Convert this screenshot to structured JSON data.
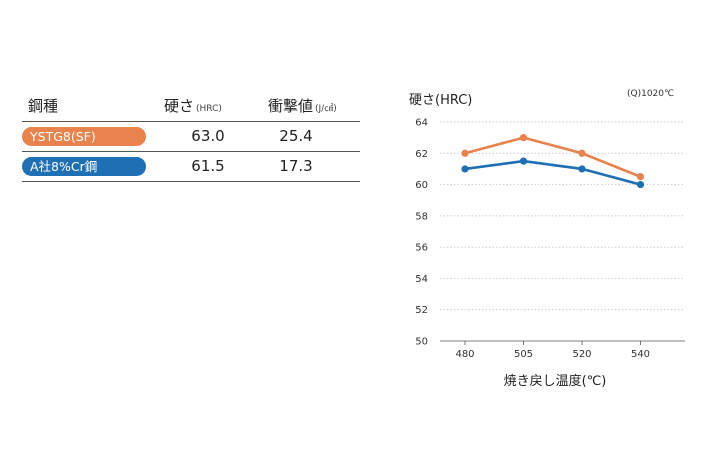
{
  "table": {
    "headers": {
      "grade": "鋼種",
      "hardness": "硬さ",
      "hardness_unit": "(HRC)",
      "impact": "衝撃値",
      "impact_unit": "(J/㎠)"
    },
    "rows": [
      {
        "name": "YSTG8(SF)",
        "hardness": "63.0",
        "impact": "25.4",
        "color": "#e8834d"
      },
      {
        "name": "A社8%Cr鋼",
        "hardness": "61.5",
        "impact": "17.3",
        "color": "#1f6fb4"
      }
    ]
  },
  "chart_data": {
    "type": "line",
    "ylabel": "硬さ(HRC)",
    "xlabel": "焼き戻し温度(℃)",
    "annotation": "(Q)1020℃",
    "categories": [
      "480",
      "505",
      "520",
      "540"
    ],
    "ylim": [
      50,
      64
    ],
    "yticks": [
      50,
      52,
      54,
      56,
      58,
      60,
      62,
      64
    ],
    "grid": true,
    "series": [
      {
        "values": [
          62,
          63,
          62,
          60.5
        ],
        "color": "#e8834d"
      },
      {
        "values": [
          61,
          61.5,
          61,
          60
        ],
        "color": "#1f6fb4"
      }
    ]
  }
}
